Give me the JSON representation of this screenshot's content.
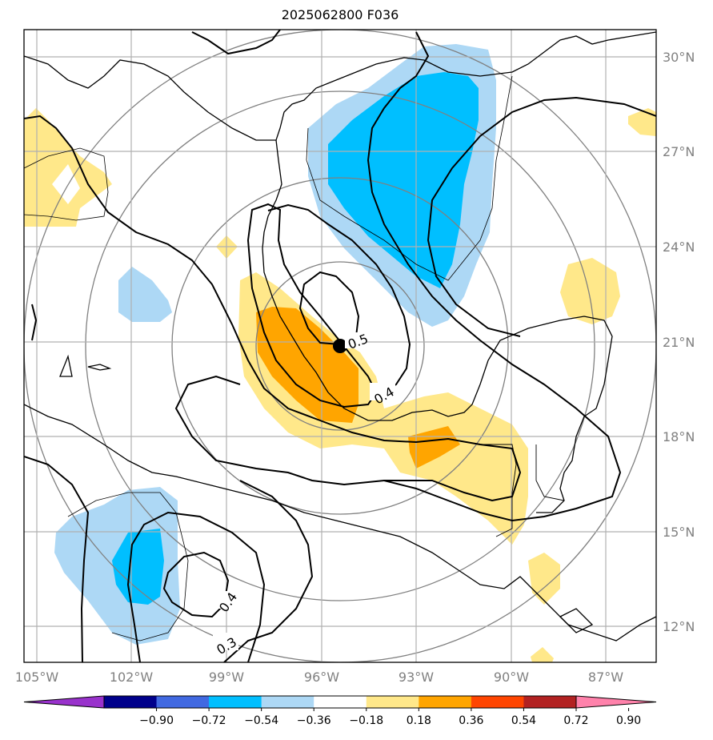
{
  "title": "2025062800 F036",
  "longitude_labels": [
    "105°W",
    "102°W",
    "99°W",
    "96°W",
    "93°W",
    "90°W",
    "87°W"
  ],
  "latitude_labels": [
    "30°N",
    "27°N",
    "24°N",
    "21°N",
    "18°N",
    "15°N",
    "12°N"
  ],
  "colorbar": {
    "tick_labels": [
      "−0.90",
      "−0.72",
      "−0.54",
      "−0.36",
      "−0.18",
      "0.18",
      "0.36",
      "0.54",
      "0.72",
      "0.90"
    ],
    "colors": [
      "#9932cc",
      "#00008b",
      "#4169e1",
      "#00bfff",
      "#add8f5",
      "#ffffff",
      "#ffe88a",
      "#ffa500",
      "#ff4500",
      "#b22222",
      "#ff82ab"
    ],
    "extend": "both"
  },
  "contour_labels": [
    "0.5",
    "0.4",
    "0.4",
    "0.3"
  ],
  "center_marker": "storm-center",
  "colors": {
    "gridline": "#b0b0b0",
    "range_ring": "#808080",
    "coastline": "#000000",
    "contour": "#000000"
  }
}
